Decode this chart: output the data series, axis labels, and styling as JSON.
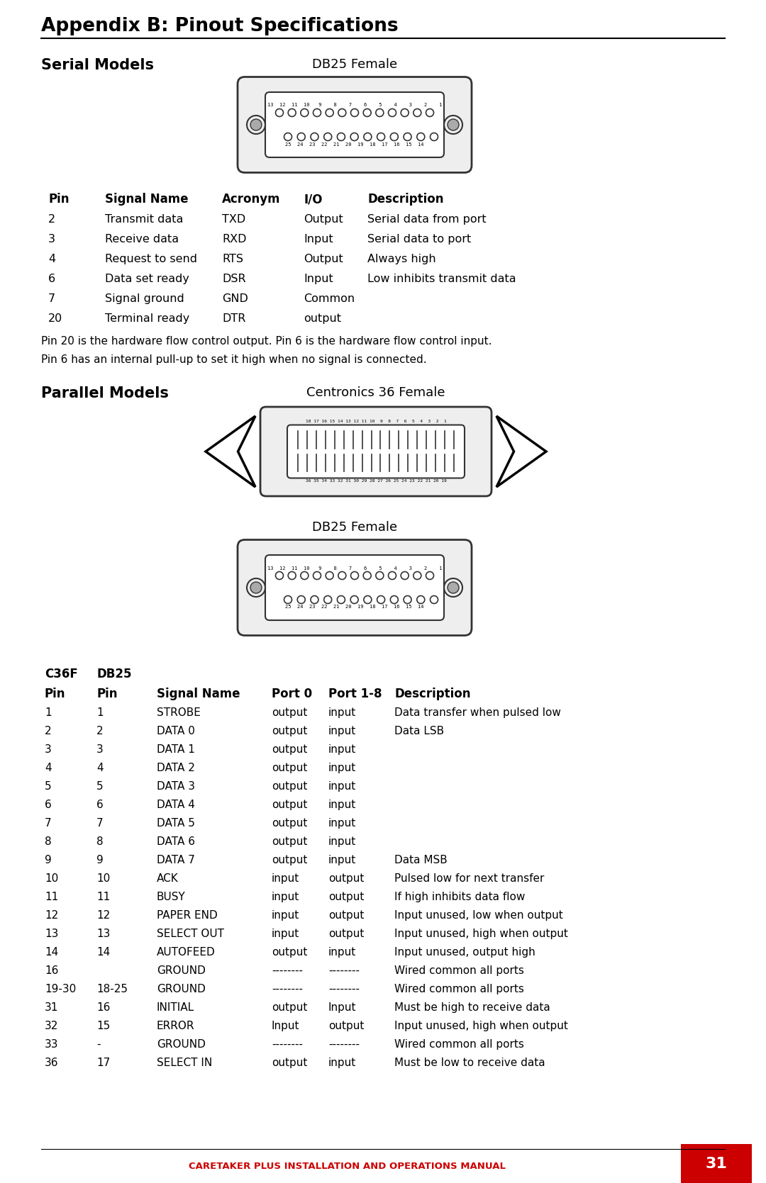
{
  "title": "Appendix B: Pinout Specifications",
  "section1_label": "Serial Models",
  "section1_connector": "DB25 Female",
  "serial_header": [
    "Pin",
    "Signal Name",
    "Acronym",
    "I/O",
    "Description"
  ],
  "serial_rows": [
    [
      "2",
      "Transmit data",
      "TXD",
      "Output",
      "Serial data from port"
    ],
    [
      "3",
      "Receive data",
      "RXD",
      "Input",
      "Serial data to port"
    ],
    [
      "4",
      "Request to send",
      "RTS",
      "Output",
      "Always high"
    ],
    [
      "6",
      "Data set ready",
      "DSR",
      "Input",
      "Low inhibits transmit data"
    ],
    [
      "7",
      "Signal ground",
      "GND",
      "Common",
      ""
    ],
    [
      "20",
      "Terminal ready",
      "DTR",
      "output",
      ""
    ]
  ],
  "serial_note1": "Pin 20 is the hardware flow control output. Pin 6 is the hardware flow control input.",
  "serial_note2": "Pin 6 has an internal pull-up to set it high when no signal is connected.",
  "section2_label": "Parallel Models",
  "section2_connector1": "Centronics 36 Female",
  "section2_connector2": "DB25 Female",
  "parallel_header2": [
    "Pin",
    "Pin",
    "Signal Name",
    "Port 0",
    "Port 1-8",
    "Description"
  ],
  "parallel_rows": [
    [
      "1",
      "1",
      "STROBE",
      "output",
      "input",
      "Data transfer when pulsed low"
    ],
    [
      "2",
      "2",
      "DATA 0",
      "output",
      "input",
      "Data LSB"
    ],
    [
      "3",
      "3",
      "DATA 1",
      "output",
      "input",
      ""
    ],
    [
      "4",
      "4",
      "DATA 2",
      "output",
      "input",
      ""
    ],
    [
      "5",
      "5",
      "DATA 3",
      "output",
      "input",
      ""
    ],
    [
      "6",
      "6",
      "DATA 4",
      "output",
      "input",
      ""
    ],
    [
      "7",
      "7",
      "DATA 5",
      "output",
      "input",
      ""
    ],
    [
      "8",
      "8",
      "DATA 6",
      "output",
      "input",
      ""
    ],
    [
      "9",
      "9",
      "DATA 7",
      "output",
      "input",
      "Data MSB"
    ],
    [
      "10",
      "10",
      "ACK",
      "input",
      "output",
      "Pulsed low for next transfer"
    ],
    [
      "11",
      "11",
      "BUSY",
      "input",
      "output",
      "If high inhibits data flow"
    ],
    [
      "12",
      "12",
      "PAPER END",
      "input",
      "output",
      "Input unused, low when output"
    ],
    [
      "13",
      "13",
      "SELECT OUT",
      "input",
      "output",
      "Input unused, high when output"
    ],
    [
      "14",
      "14",
      "AUTOFEED",
      "output",
      "input",
      "Input unused, output high"
    ],
    [
      "16",
      "",
      "GROUND",
      "--------",
      "--------",
      "Wired common all ports"
    ],
    [
      "19-30",
      "18-25",
      "GROUND",
      "--------",
      "--------",
      "Wired common all ports"
    ],
    [
      "31",
      "16",
      "INITIAL",
      "output",
      "Input",
      "Must be high to receive data"
    ],
    [
      "32",
      "15",
      "ERROR",
      "Input",
      "output",
      "Input unused, high when output"
    ],
    [
      "33",
      "-",
      "GROUND",
      "--------",
      "--------",
      "Wired common all ports"
    ],
    [
      "36",
      "17",
      "SELECT IN",
      "output",
      "input",
      "Must be low to receive data"
    ]
  ],
  "footer_text": "CARETAKER PLUS INSTALLATION AND OPERATIONS MANUAL",
  "footer_page": "31",
  "bg_color": "#ffffff",
  "text_color": "#000000",
  "footer_color": "#cc0000"
}
